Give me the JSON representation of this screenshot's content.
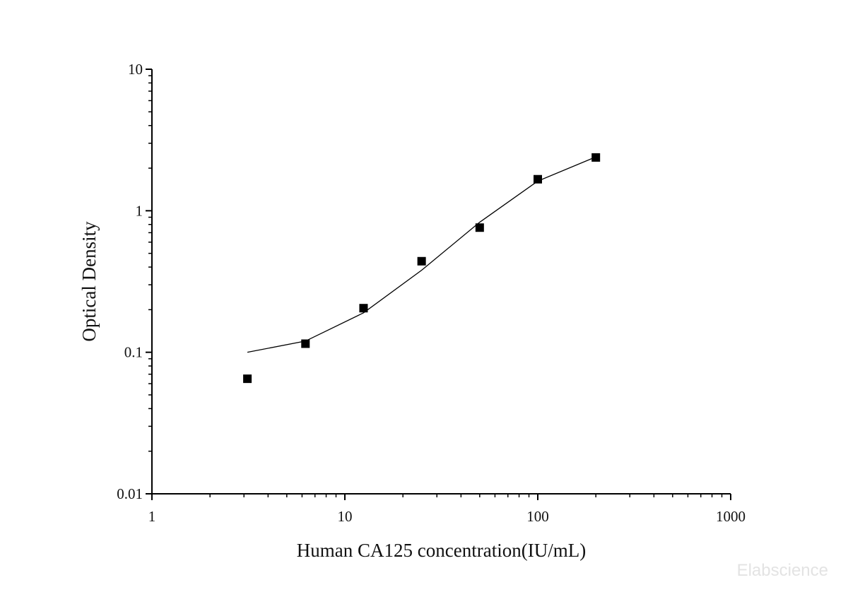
{
  "chart_data": {
    "type": "scatter",
    "title": "",
    "xlabel": "Human CA125 concentration(IU/mL)",
    "ylabel": "Optical Density",
    "xscale": "log",
    "yscale": "log",
    "xlim": [
      1,
      1000
    ],
    "ylim": [
      0.01,
      10
    ],
    "x_ticks": [
      "1",
      "10",
      "100",
      "1000"
    ],
    "y_ticks": [
      "0.01",
      "0.1",
      "1",
      "10"
    ],
    "grid": false,
    "legend": "none",
    "points": {
      "x": [
        3.125,
        6.25,
        12.5,
        25,
        50,
        100,
        200
      ],
      "y": [
        0.065,
        0.115,
        0.205,
        0.44,
        0.76,
        1.67,
        2.38
      ],
      "marker": "square",
      "color": "#000000"
    },
    "fit_curve": {
      "x": [
        3.125,
        6.25,
        12.5,
        25,
        50,
        100,
        200
      ],
      "y": [
        0.1,
        0.12,
        0.19,
        0.38,
        0.83,
        1.62,
        2.4
      ],
      "color": "#000000"
    }
  },
  "watermark": "Elabscience"
}
